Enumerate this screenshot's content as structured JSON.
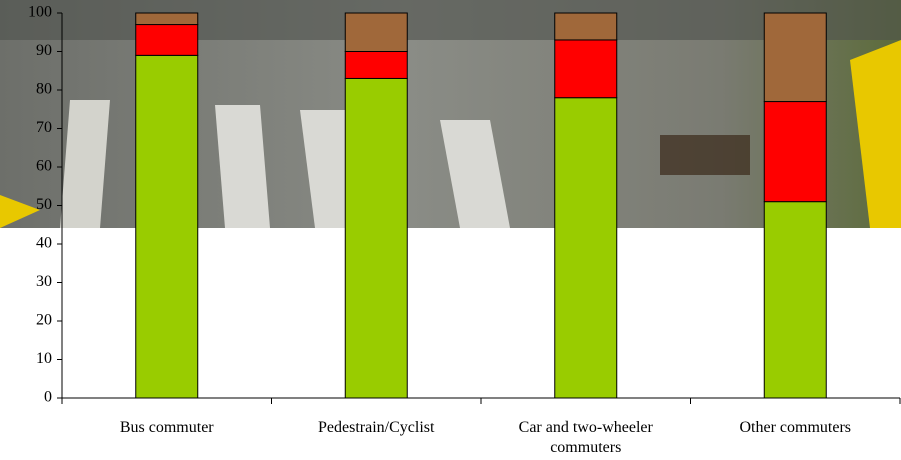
{
  "chart_data": {
    "type": "stacked_bar",
    "categories": [
      "Bus commuter",
      "Pedestrain/Cyclist",
      "Car and two-wheeler commuters",
      "Other commuters"
    ],
    "series": [
      {
        "color": "#99cc00",
        "values": [
          89,
          83,
          78,
          51
        ]
      },
      {
        "color": "#ff0000",
        "values": [
          8,
          7,
          15,
          26
        ]
      },
      {
        "color": "#a0683a",
        "values": [
          3,
          10,
          7,
          23
        ]
      }
    ],
    "ylim": [
      0,
      100
    ],
    "yticks": [
      0,
      10,
      20,
      30,
      40,
      50,
      60,
      70,
      80,
      90,
      100
    ]
  }
}
